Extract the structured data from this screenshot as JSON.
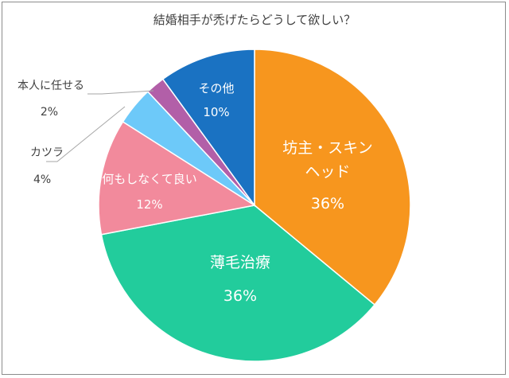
{
  "chart_data": {
    "type": "pie",
    "title": "結婚相手が禿げたらどうして欲しい？",
    "slices": [
      {
        "label_lines": [
          "坊主・スキン",
          "ヘッド"
        ],
        "value": 36,
        "value_label": "36%",
        "color": "#F7961E",
        "label_position": "inside"
      },
      {
        "label_lines": [
          "薄毛治療"
        ],
        "value": 36,
        "value_label": "36%",
        "color": "#22CC9C",
        "label_position": "inside"
      },
      {
        "label_lines": [
          "何もしなくて良い"
        ],
        "value": 12,
        "value_label": "12%",
        "color": "#F28A9C",
        "label_position": "inside"
      },
      {
        "label_lines": [
          "カツラ"
        ],
        "value": 4,
        "value_label": "4%",
        "color": "#6DC9F9",
        "label_position": "outside"
      },
      {
        "label_lines": [
          "本人に任せる"
        ],
        "value": 2,
        "value_label": "2%",
        "color": "#B25FA8",
        "label_position": "outside"
      },
      {
        "label_lines": [
          "その他"
        ],
        "value": 10,
        "value_label": "10%",
        "color": "#1A72C2",
        "label_position": "inside"
      }
    ],
    "start": "top",
    "direction": "clockwise",
    "legend": "none"
  }
}
